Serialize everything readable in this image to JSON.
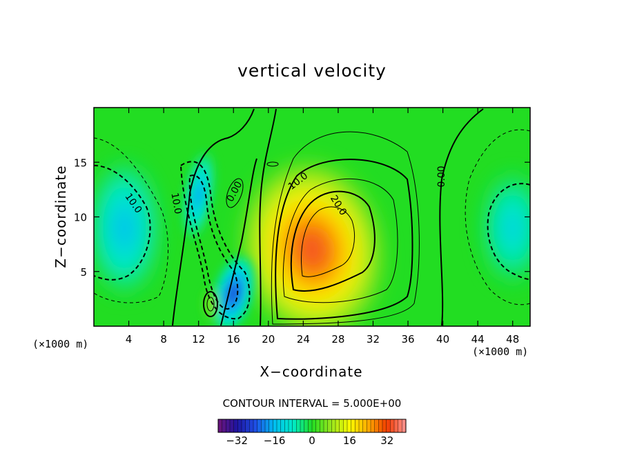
{
  "chart_data": {
    "type": "heatmap",
    "title": "vertical velocity",
    "xlabel": "X−coordinate",
    "ylabel": "Z−coordinate",
    "x_unit_left": "(×1000 m)",
    "x_unit_right": "(×1000 m)",
    "xlim": [
      0,
      50
    ],
    "ylim": [
      0,
      20
    ],
    "xticks": [
      4,
      8,
      12,
      16,
      20,
      24,
      28,
      32,
      36,
      40,
      44,
      48
    ],
    "yticks": [
      5,
      10,
      15
    ],
    "contour_interval_text": "CONTOUR INTERVAL = 5.000E+00",
    "colorbar": {
      "range": [
        -40,
        40
      ],
      "ticks": [
        -32,
        -16,
        0,
        16,
        32
      ],
      "tick_labels": [
        "−32",
        "−16",
        "0",
        "16",
        "32"
      ]
    },
    "contour_labels": [
      "10.0",
      "10.0",
      "0.00",
      "10.0",
      "20.0",
      "0.00"
    ],
    "features": [
      {
        "kind": "updraft",
        "x": 25,
        "z": 7,
        "peak": 34
      },
      {
        "kind": "downdraft",
        "x": 16,
        "z": 3,
        "peak": -27
      },
      {
        "kind": "downdraft",
        "x": 12,
        "z": 12,
        "peak": -18
      },
      {
        "kind": "downdraft",
        "x": 3.5,
        "z": 9,
        "peak": -16
      },
      {
        "kind": "downdraft",
        "x": 48,
        "z": 9,
        "peak": -13
      },
      {
        "kind": "updraft",
        "x": 13.5,
        "z": 2,
        "peak": 9
      }
    ]
  }
}
